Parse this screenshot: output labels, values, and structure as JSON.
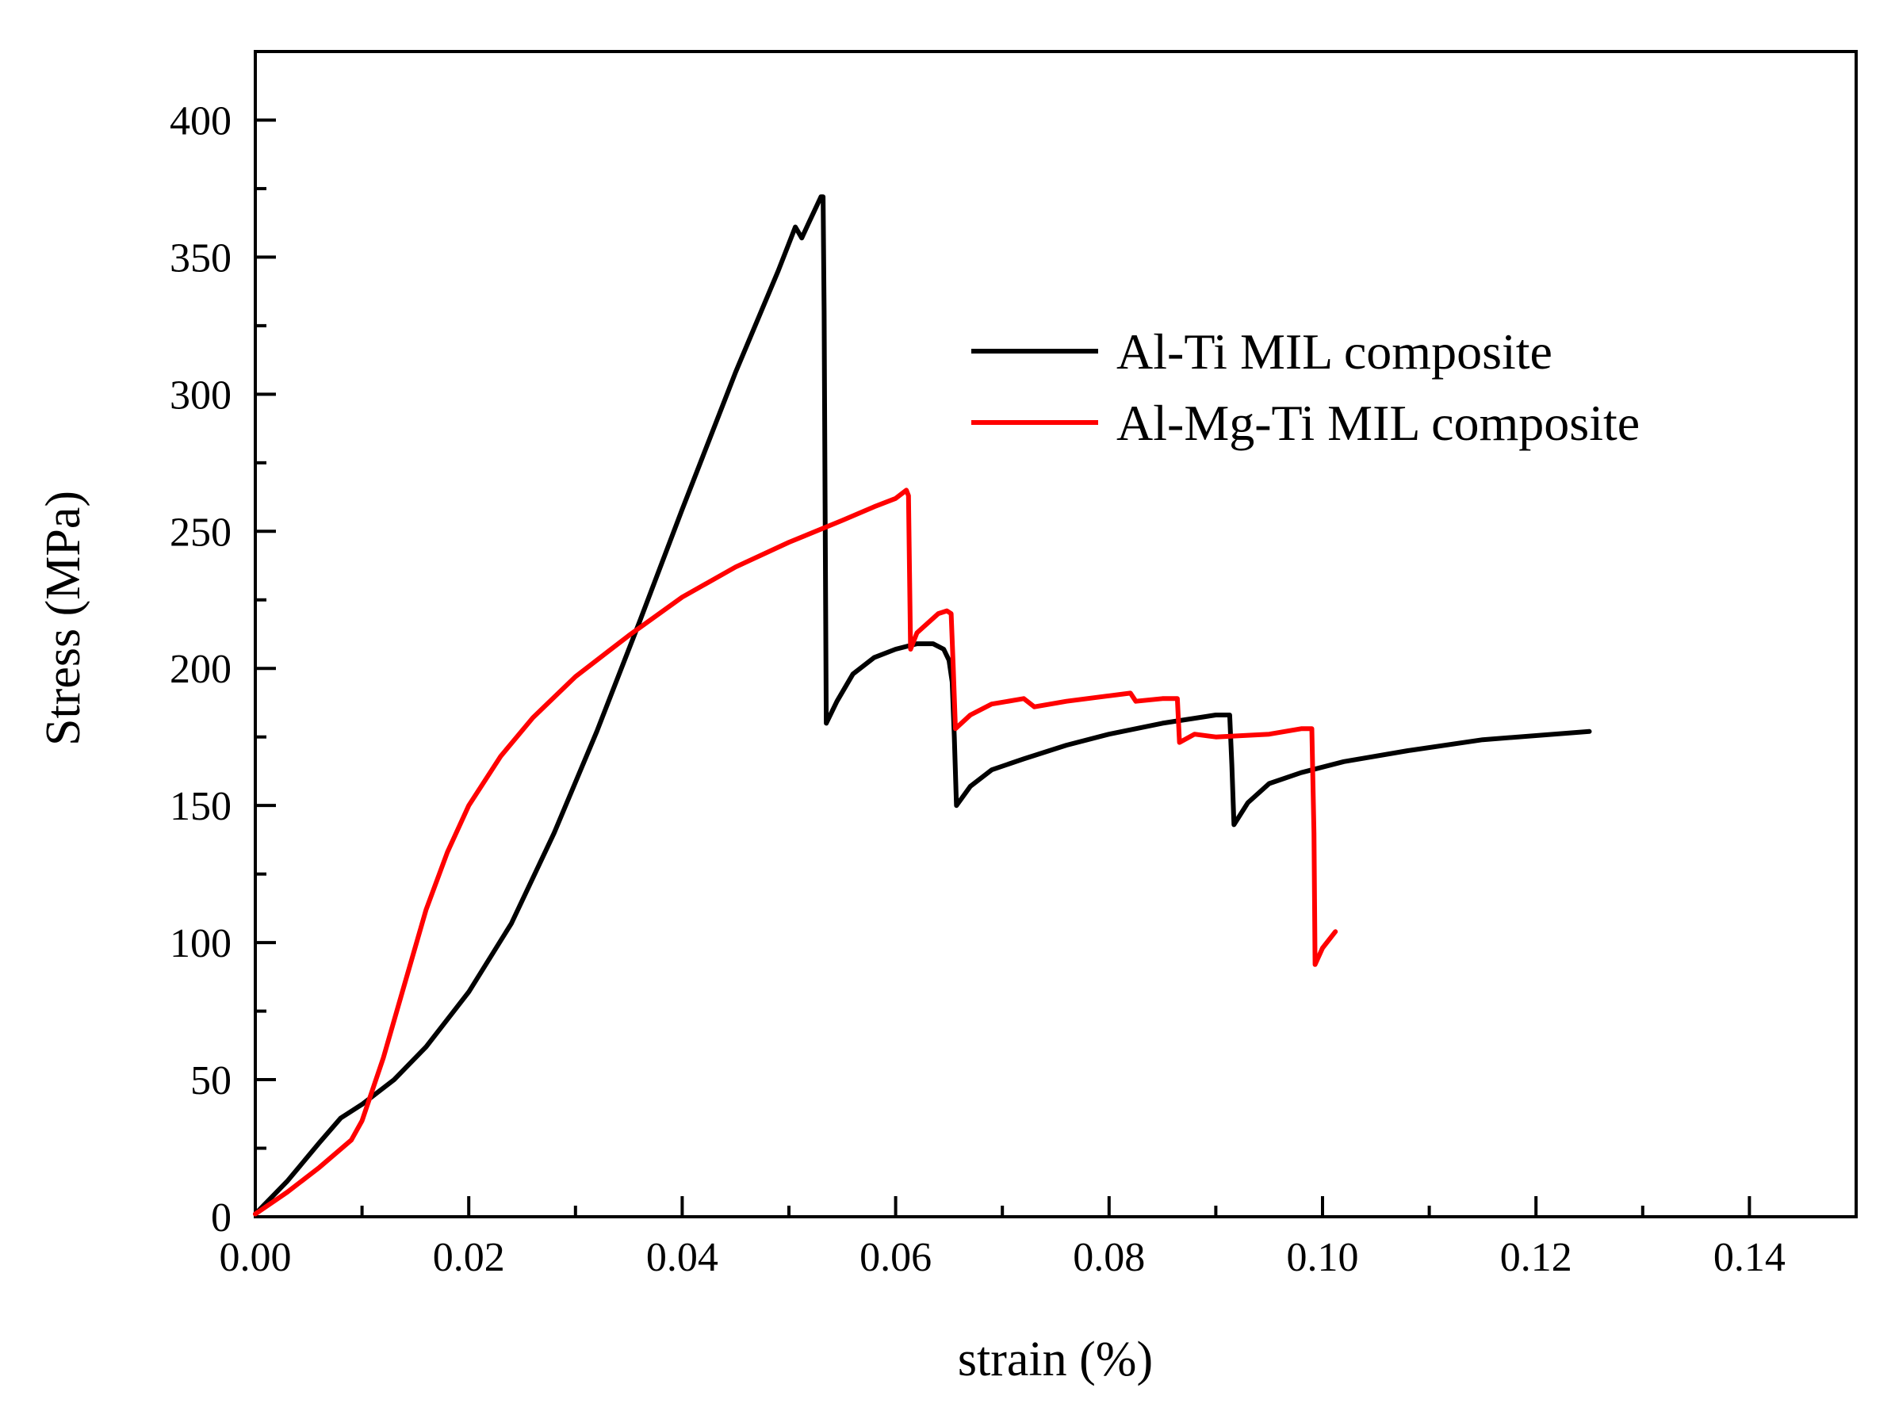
{
  "chart_data": {
    "type": "line",
    "xlabel": "strain (%)",
    "ylabel": "Stress (MPa)",
    "xlim": [
      0.0,
      0.15
    ],
    "ylim": [
      0,
      425
    ],
    "xticks": [
      0.0,
      0.02,
      0.04,
      0.06,
      0.08,
      0.1,
      0.12,
      0.14
    ],
    "xtick_labels": [
      "0.00",
      "0.02",
      "0.04",
      "0.06",
      "0.08",
      "0.10",
      "0.12",
      "0.14"
    ],
    "yticks": [
      0,
      50,
      100,
      150,
      200,
      250,
      300,
      350,
      400
    ],
    "ytick_labels": [
      "0",
      "50",
      "100",
      "150",
      "200",
      "250",
      "300",
      "350",
      "400"
    ],
    "legend_position": "upper-right",
    "series": [
      {
        "name": "Al-Ti MIL composite",
        "color": "#000000",
        "points": [
          [
            0.0,
            1
          ],
          [
            0.003,
            13
          ],
          [
            0.006,
            27
          ],
          [
            0.008,
            36
          ],
          [
            0.01,
            41
          ],
          [
            0.013,
            50
          ],
          [
            0.016,
            62
          ],
          [
            0.02,
            82
          ],
          [
            0.024,
            107
          ],
          [
            0.028,
            140
          ],
          [
            0.032,
            177
          ],
          [
            0.036,
            217
          ],
          [
            0.04,
            258
          ],
          [
            0.045,
            308
          ],
          [
            0.049,
            345
          ],
          [
            0.0506,
            361
          ],
          [
            0.0512,
            357
          ],
          [
            0.0518,
            362
          ],
          [
            0.053,
            372
          ],
          [
            0.0532,
            372
          ],
          [
            0.0533,
            330
          ],
          [
            0.0534,
            250
          ],
          [
            0.0535,
            180
          ],
          [
            0.0545,
            188
          ],
          [
            0.056,
            198
          ],
          [
            0.058,
            204
          ],
          [
            0.06,
            207
          ],
          [
            0.062,
            209
          ],
          [
            0.0635,
            209
          ],
          [
            0.0645,
            207
          ],
          [
            0.065,
            203
          ],
          [
            0.0653,
            195
          ],
          [
            0.0655,
            175
          ],
          [
            0.0657,
            150
          ],
          [
            0.067,
            157
          ],
          [
            0.069,
            163
          ],
          [
            0.072,
            167
          ],
          [
            0.076,
            172
          ],
          [
            0.08,
            176
          ],
          [
            0.085,
            180
          ],
          [
            0.09,
            183
          ],
          [
            0.0913,
            183
          ],
          [
            0.0915,
            165
          ],
          [
            0.0917,
            143
          ],
          [
            0.093,
            151
          ],
          [
            0.095,
            158
          ],
          [
            0.098,
            162
          ],
          [
            0.102,
            166
          ],
          [
            0.108,
            170
          ],
          [
            0.115,
            174
          ],
          [
            0.125,
            177
          ]
        ]
      },
      {
        "name": "Al-Mg-Ti MIL composite",
        "color": "#ff0000",
        "points": [
          [
            0.0,
            1
          ],
          [
            0.003,
            9
          ],
          [
            0.006,
            18
          ],
          [
            0.009,
            28
          ],
          [
            0.01,
            35
          ],
          [
            0.012,
            58
          ],
          [
            0.014,
            85
          ],
          [
            0.016,
            112
          ],
          [
            0.018,
            133
          ],
          [
            0.02,
            150
          ],
          [
            0.023,
            168
          ],
          [
            0.026,
            182
          ],
          [
            0.03,
            197
          ],
          [
            0.035,
            212
          ],
          [
            0.04,
            226
          ],
          [
            0.045,
            237
          ],
          [
            0.05,
            246
          ],
          [
            0.055,
            254
          ],
          [
            0.058,
            259
          ],
          [
            0.06,
            262
          ],
          [
            0.061,
            265
          ],
          [
            0.0612,
            263
          ],
          [
            0.0613,
            235
          ],
          [
            0.0614,
            207
          ],
          [
            0.062,
            213
          ],
          [
            0.064,
            220
          ],
          [
            0.0648,
            221
          ],
          [
            0.0652,
            220
          ],
          [
            0.0654,
            200
          ],
          [
            0.0656,
            178
          ],
          [
            0.067,
            183
          ],
          [
            0.069,
            187
          ],
          [
            0.072,
            189
          ],
          [
            0.073,
            186
          ],
          [
            0.076,
            188
          ],
          [
            0.08,
            190
          ],
          [
            0.082,
            191
          ],
          [
            0.0825,
            188
          ],
          [
            0.085,
            189
          ],
          [
            0.0864,
            189
          ],
          [
            0.0866,
            173
          ],
          [
            0.088,
            176
          ],
          [
            0.09,
            175
          ],
          [
            0.095,
            176
          ],
          [
            0.098,
            178
          ],
          [
            0.099,
            178
          ],
          [
            0.0992,
            140
          ],
          [
            0.0993,
            92
          ],
          [
            0.1,
            98
          ],
          [
            0.1012,
            104
          ]
        ]
      }
    ]
  }
}
